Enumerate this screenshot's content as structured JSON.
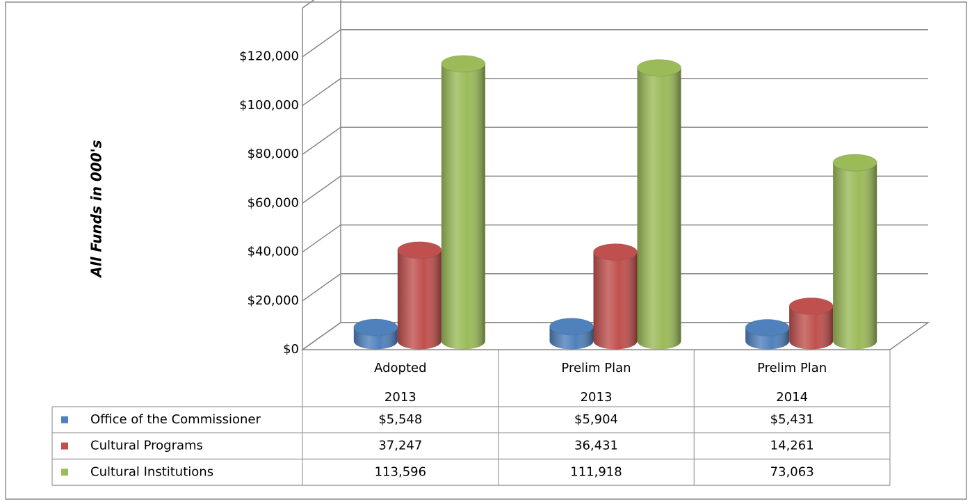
{
  "chart_data": {
    "type": "bar3d",
    "y_axis_label": "All Funds in 000's",
    "categories": [
      [
        "Adopted",
        "2013"
      ],
      [
        "Prelim Plan",
        "2013"
      ],
      [
        "Prelim Plan",
        "2014"
      ]
    ],
    "series": [
      {
        "name": "Office of the Commissioner",
        "color": "#4f81bd",
        "values": [
          5548,
          5904,
          5431
        ],
        "value_labels": [
          "$5,548",
          "$5,904",
          "$5,431"
        ]
      },
      {
        "name": "Cultural Programs",
        "color": "#c0504d",
        "values": [
          37247,
          36431,
          14261
        ],
        "value_labels": [
          "37,247",
          "36,431",
          "14,261"
        ]
      },
      {
        "name": "Cultural Institutions",
        "color": "#9bbb59",
        "values": [
          113596,
          111918,
          73063
        ],
        "value_labels": [
          "113,596",
          "111,918",
          "73,063"
        ]
      }
    ],
    "ylim": [
      0,
      140000
    ],
    "yticks": [
      {
        "value": 0,
        "label": "$0"
      },
      {
        "value": 20000,
        "label": "$20,000"
      },
      {
        "value": 40000,
        "label": "$40,000"
      },
      {
        "value": 60000,
        "label": "$60,000"
      },
      {
        "value": 80000,
        "label": "$80,000"
      },
      {
        "value": 100000,
        "label": "$100,000"
      },
      {
        "value": 120000,
        "label": "$120,000"
      }
    ],
    "grid": true
  }
}
